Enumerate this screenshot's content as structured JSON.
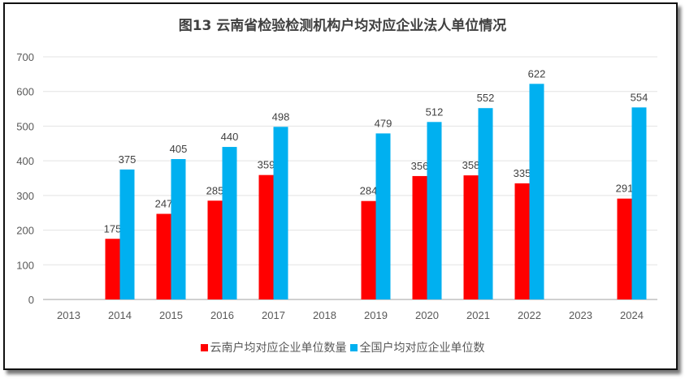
{
  "chart_data": {
    "type": "bar",
    "title": "图13  云南省检验检测机构户均对应企业法人单位情况",
    "categories": [
      "2013",
      "2014",
      "2015",
      "2016",
      "2017",
      "2018",
      "2019",
      "2020",
      "2021",
      "2022",
      "2023",
      "2024"
    ],
    "series": [
      {
        "name": "云南户均对应企业单位数量",
        "color": "#FF0000",
        "values": [
          null,
          175,
          247,
          285,
          359,
          null,
          284,
          356,
          358,
          335,
          null,
          291
        ]
      },
      {
        "name": "全国户均对应企业单位数",
        "color": "#00B0F0",
        "values": [
          null,
          375,
          405,
          440,
          498,
          null,
          479,
          512,
          552,
          622,
          null,
          554
        ]
      }
    ],
    "ylim": [
      0,
      700
    ],
    "yticks": [
      0,
      100,
      200,
      300,
      400,
      500,
      600,
      700
    ],
    "grid": true,
    "legend": "bottom",
    "data_labels": true
  }
}
